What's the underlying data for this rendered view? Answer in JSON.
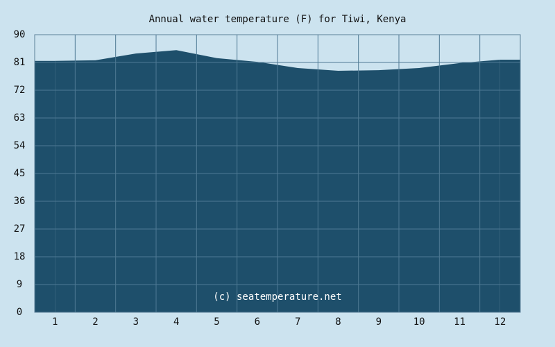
{
  "chart_data": {
    "type": "area",
    "title": "Annual water temperature (F) for Tiwi, Kenya",
    "annotation": "(c) seatemperature.net",
    "categories": [
      "1",
      "2",
      "3",
      "4",
      "5",
      "6",
      "7",
      "8",
      "9",
      "10",
      "11",
      "12"
    ],
    "values": [
      81.5,
      81.7,
      83.9,
      85.0,
      82.4,
      81.2,
      79.2,
      78.3,
      78.5,
      79.2,
      80.8,
      81.9
    ],
    "color": "#1e4f6b",
    "ylim": [
      0,
      90
    ],
    "yticks": [
      0,
      9,
      18,
      27,
      36,
      45,
      54,
      63,
      72,
      81,
      90
    ],
    "grid": true
  }
}
